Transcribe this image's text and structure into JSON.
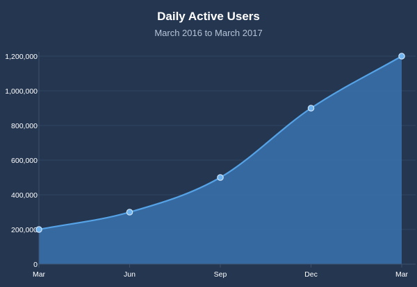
{
  "colors": {
    "background": "#243650",
    "grid": "#2f4563",
    "axis": "#3c5170",
    "area_fill": "#3a6ea8",
    "line": "#55a3e6",
    "point_fill": "#6fb3f0",
    "point_stroke": "#cfe6fb"
  },
  "chart_data": {
    "type": "area",
    "title": "Daily Active Users",
    "subtitle": "March 2016 to March 2017",
    "xlabel": "",
    "ylabel": "",
    "categories": [
      "Mar",
      "Jun",
      "Sep",
      "Dec",
      "Mar"
    ],
    "series": [
      {
        "values": [
          200000,
          300000,
          500000,
          900000,
          1200000
        ]
      }
    ],
    "ylim": [
      0,
      1200000
    ],
    "yticks": [
      0,
      200000,
      400000,
      600000,
      800000,
      1000000,
      1200000
    ],
    "ytick_labels": [
      "0",
      "200,000",
      "400,000",
      "600,000",
      "800,000",
      "1,000,000",
      "1,200,000"
    ],
    "grid": true,
    "smooth": true,
    "markers": true
  }
}
